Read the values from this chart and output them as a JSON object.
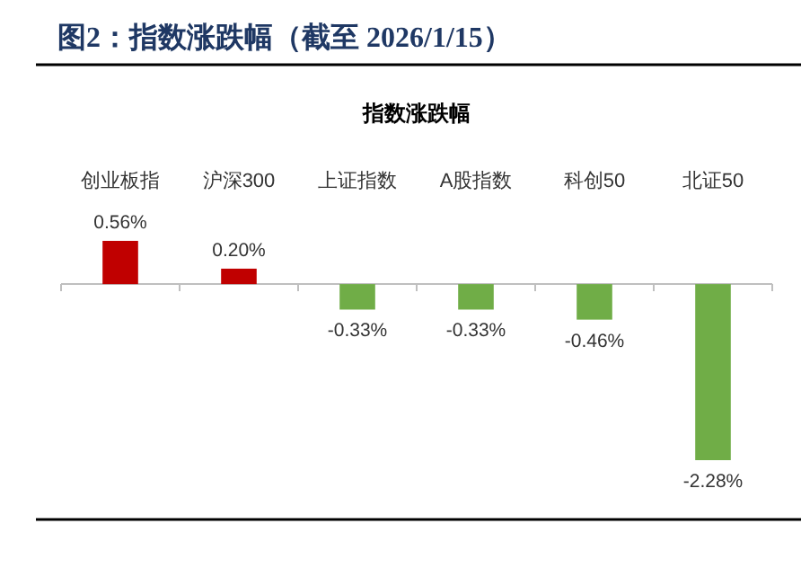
{
  "chart_data": {
    "type": "bar",
    "title": "图2：指数涨跌幅（截至 2026/1/15）",
    "subtitle": "指数涨跌幅",
    "categories": [
      "创业板指",
      "沪深300",
      "上证指数",
      "A股指数",
      "科创50",
      "北证50"
    ],
    "values": [
      0.56,
      0.2,
      -0.33,
      -0.33,
      -0.46,
      -2.28
    ],
    "colors": [
      "#c00000",
      "#c00000",
      "#70ad47",
      "#70ad47",
      "#70ad47",
      "#70ad47"
    ],
    "value_labels": [
      "0.56%",
      "0.20%",
      "-0.33%",
      "-0.33%",
      "-0.46%",
      "-2.28%"
    ]
  }
}
